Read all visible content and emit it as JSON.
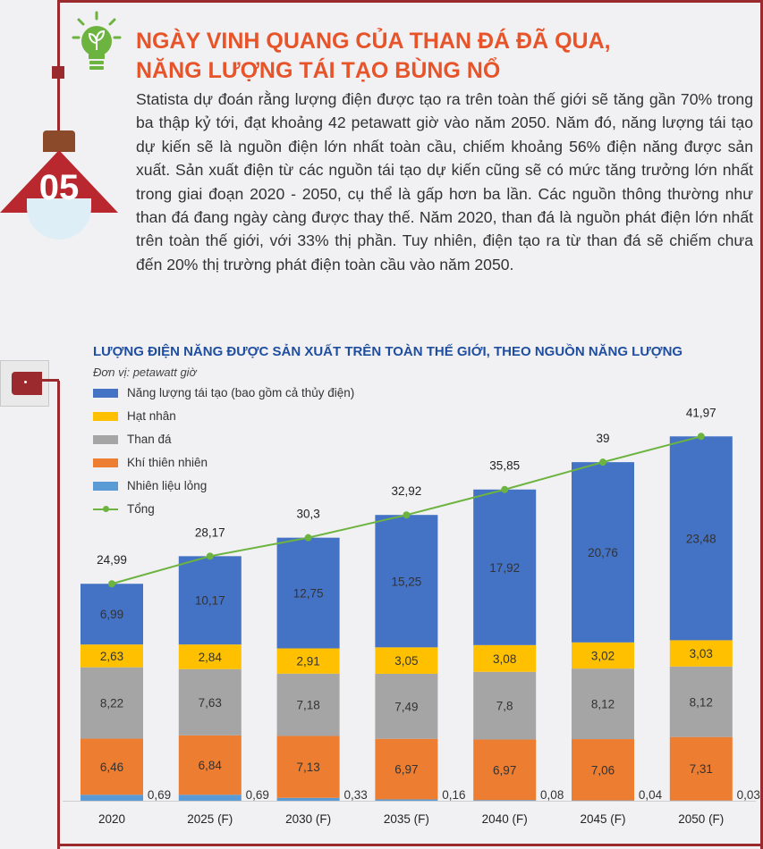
{
  "header": {
    "number": "05",
    "title_line1": "NGÀY VINH QUANG CỦA THAN ĐÁ ĐÃ QUA,",
    "title_line2": "NĂNG LƯỢNG TÁI TẠO BÙNG NỔ",
    "body": "Statista dự đoán rằng lượng điện được tạo ra trên toàn thế giới sẽ tăng gần 70% trong ba thập kỷ tới, đạt khoảng 42 petawatt giờ vào năm 2050. Năm đó, năng lượng tái tạo dự kiến sẽ là nguồn điện lớn nhất toàn cầu, chiếm khoảng 56% điện năng được sản xuất. Sản xuất điện từ các nguồn tái tạo dự kiến cũng sẽ có mức tăng trưởng lớn nhất trong giai đoạn 2020 - 2050, cụ thể là gấp hơn ba lần. Các nguồn thông thường như than đá đang ngày càng được thay thế. Năm 2020, than đá là nguồn phát điện lớn nhất trên toàn thế giới, với 33% thị phần. Tuy nhiên, điện tạo ra từ than đá sẽ chiếm chưa đến 20% thị trường phát điện toàn cầu vào năm 2050."
  },
  "chart_data": {
    "type": "bar",
    "stacked": true,
    "title": "LƯỢNG ĐIỆN NĂNG ĐƯỢC SẢN XUẤT TRÊN TOÀN THẾ GIỚI, THEO NGUỒN NĂNG LƯỢNG",
    "unit": "Đơn vị: petawatt giờ",
    "categories": [
      "2020",
      "2025 (F)",
      "2030 (F)",
      "2035 (F)",
      "2040 (F)",
      "2045 (F)",
      "2050 (F)"
    ],
    "series": [
      {
        "name": "Nhiên liệu lỏng",
        "color": "#5b9bd5",
        "values": [
          0.69,
          0.69,
          0.33,
          0.16,
          0.08,
          0.04,
          0.03
        ],
        "labels": [
          "0,69",
          "0,69",
          "0,33",
          "0,16",
          "0,08",
          "0,04",
          "0,03"
        ]
      },
      {
        "name": "Khí thiên nhiên",
        "color": "#ed7d31",
        "values": [
          6.46,
          6.84,
          7.13,
          6.97,
          6.97,
          7.06,
          7.31
        ],
        "labels": [
          "6,46",
          "6,84",
          "7,13",
          "6,97",
          "6,97",
          "7,06",
          "7,31"
        ]
      },
      {
        "name": "Than đá",
        "color": "#a5a5a5",
        "values": [
          8.22,
          7.63,
          7.18,
          7.49,
          7.8,
          8.12,
          8.12
        ],
        "labels": [
          "8,22",
          "7,63",
          "7,18",
          "7,49",
          "7,8",
          "8,12",
          "8,12"
        ]
      },
      {
        "name": "Hạt nhân",
        "color": "#ffc000",
        "values": [
          2.63,
          2.84,
          2.91,
          3.05,
          3.08,
          3.02,
          3.03
        ],
        "labels": [
          "2,63",
          "2,84",
          "2,91",
          "3,05",
          "3,08",
          "3,02",
          "3,03"
        ]
      },
      {
        "name": "Năng lượng tái tạo (bao gồm cả thủy điện)",
        "color": "#4472c4",
        "values": [
          6.99,
          10.17,
          12.75,
          15.25,
          17.92,
          20.76,
          23.48
        ],
        "labels": [
          "6,99",
          "10,17",
          "12,75",
          "15,25",
          "17,92",
          "20,76",
          "23,48"
        ]
      }
    ],
    "total": {
      "name": "Tổng",
      "color": "#6db33f",
      "values": [
        24.99,
        28.17,
        30.3,
        32.92,
        35.85,
        39,
        41.97
      ],
      "labels": [
        "24,99",
        "28,17",
        "30,3",
        "32,92",
        "35,85",
        "39",
        "41,97"
      ]
    },
    "legend_order": [
      "Năng lượng tái tạo (bao gồm cả thủy điện)",
      "Hạt nhân",
      "Than đá",
      "Khí thiên nhiên",
      "Nhiên liệu lỏng",
      "Tổng"
    ],
    "legend_position": "top-left",
    "ylim": [
      0,
      42
    ],
    "grid": false
  }
}
